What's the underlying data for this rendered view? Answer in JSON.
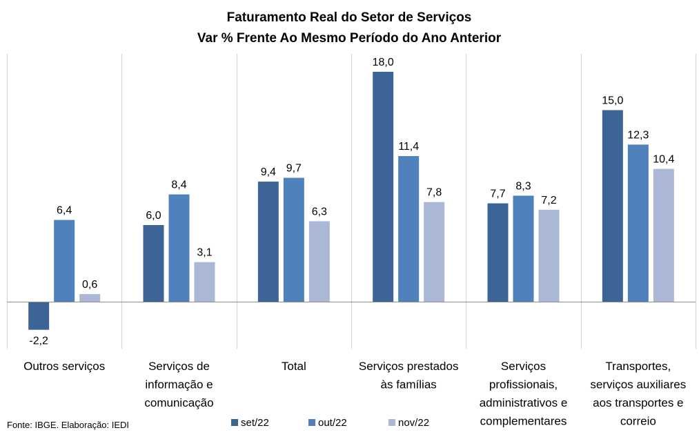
{
  "chart_data": {
    "type": "bar",
    "title": "Faturamento Real do Setor de Serviços",
    "subtitle": "Var % Frente Ao Mesmo Período do Ano Anterior",
    "categories": [
      [
        "Outros serviços"
      ],
      [
        "Serviços de",
        "informação e",
        "comunicação"
      ],
      [
        "Total"
      ],
      [
        "Serviços prestados",
        "às famílias"
      ],
      [
        "Serviços",
        "profissionais,",
        "administrativos e",
        "complementares"
      ],
      [
        "Transportes,",
        "serviços auxiliares",
        "aos transportes e",
        "correio"
      ]
    ],
    "series": [
      {
        "name": "set/22",
        "color": "#3c6496",
        "values": [
          -2.2,
          6.0,
          9.4,
          18.0,
          7.7,
          15.0
        ],
        "labels": [
          "-2,2",
          "6,0",
          "9,4",
          "18,0",
          "7,7",
          "15,0"
        ]
      },
      {
        "name": "out/22",
        "color": "#4f81bd",
        "values": [
          6.4,
          8.4,
          9.7,
          11.4,
          8.3,
          12.3
        ],
        "labels": [
          "6,4",
          "8,4",
          "9,7",
          "11,4",
          "8,3",
          "12,3"
        ]
      },
      {
        "name": "nov/22",
        "color": "#aab8d6",
        "values": [
          0.6,
          3.1,
          6.3,
          7.8,
          7.2,
          10.4
        ],
        "labels": [
          "0,6",
          "3,1",
          "6,3",
          "7,8",
          "7,2",
          "10,4"
        ]
      }
    ],
    "ylim": [
      -4,
      19
    ],
    "grid": false,
    "legend": "bottom"
  },
  "footer": {
    "source": "Fonte: IBGE. Elaboração: IEDI"
  }
}
